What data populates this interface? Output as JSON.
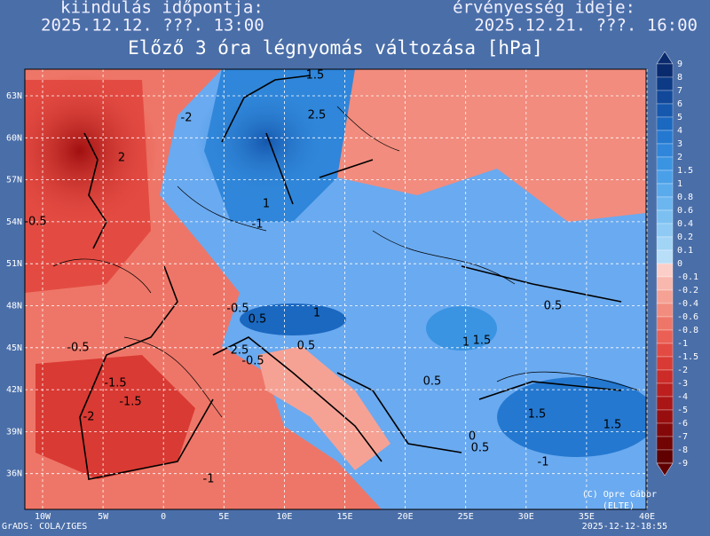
{
  "header": {
    "left_label": "kiindulás időpontja:",
    "left_time": "2025.12.12. ???. 13:00",
    "right_label": "érvényesség ideje:",
    "right_time": "2025.12.21. ???. 16:00",
    "title": "Előző 3 óra légnyomás változása [hPa]"
  },
  "map": {
    "lat_labels": [
      "63N",
      "60N",
      "57N",
      "54N",
      "51N",
      "48N",
      "45N",
      "42N",
      "39N",
      "36N"
    ],
    "lon_labels": [
      "10W",
      "5W",
      "0",
      "5E",
      "10E",
      "15E",
      "20E",
      "25E",
      "30E",
      "35E",
      "40E"
    ],
    "contour_labels": [
      "-2",
      "-1.5",
      "-0.5",
      "-1",
      "-2",
      "-1.5",
      "-0.5",
      "-1",
      "-0.5",
      "2",
      "1.5",
      "2.5",
      "0.5",
      "0.5",
      "1",
      "0.5",
      "1.5",
      "1",
      "1.5",
      "1.5",
      "-1",
      "0.5",
      "0",
      "0.5",
      "-0.5",
      "2.5",
      "1"
    ]
  },
  "colorbar": {
    "labels": [
      "9",
      "8",
      "7",
      "6",
      "5",
      "4",
      "3",
      "2",
      "1.5",
      "1",
      "0.8",
      "0.6",
      "0.4",
      "0.2",
      "0.1",
      "0",
      "-0.1",
      "-0.2",
      "-0.4",
      "-0.6",
      "-0.8",
      "-1",
      "-1.5",
      "-2",
      "-3",
      "-4",
      "-5",
      "-6",
      "-7",
      "-8",
      "-9"
    ],
    "colors": [
      "#0a2a6e",
      "#0d3a85",
      "#11489a",
      "#1558ae",
      "#1a68c0",
      "#2478d0",
      "#2f86da",
      "#3a94e2",
      "#4aa0e8",
      "#5aabec",
      "#6bb6ef",
      "#7cc0f2",
      "#8ecaf4",
      "#a2d4f6",
      "#b8def8",
      "#fbcfc8",
      "#f8b8ae",
      "#f5a295",
      "#f28c7e",
      "#ee7668",
      "#ea6054",
      "#e34b42",
      "#d93a33",
      "#cc2b27",
      "#bc1f1d",
      "#aa1515",
      "#980e0e",
      "#850808",
      "#720404",
      "#600000"
    ]
  },
  "footer": {
    "software": "GrADS: COLA/IGES",
    "timestamp": "2025-12-12-18:55",
    "credit": "(C) Opre Gábor",
    "institution": "(ELTE)"
  }
}
